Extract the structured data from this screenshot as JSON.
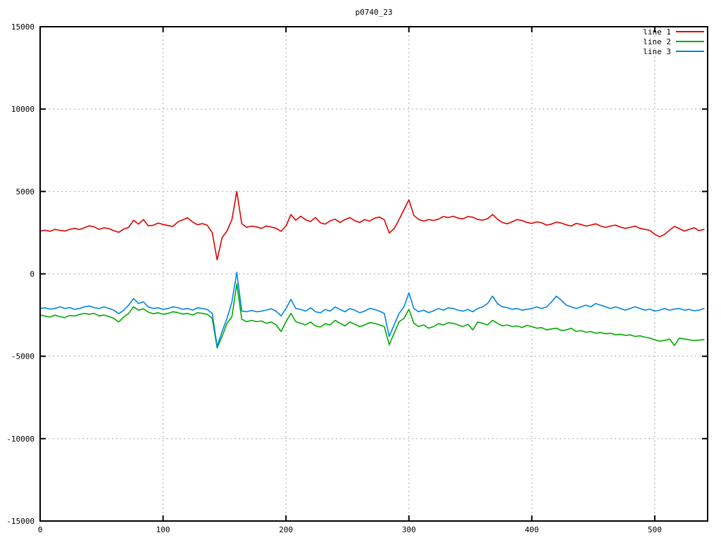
{
  "page": {
    "background": "#ffffff"
  },
  "chart_data": {
    "type": "line",
    "title": "p0740_23",
    "xlabel": "",
    "ylabel": "",
    "xlim": [
      0,
      543
    ],
    "ylim": [
      -15000,
      15000
    ],
    "x_ticks": [
      0,
      100,
      200,
      300,
      400,
      500
    ],
    "y_ticks": [
      -15000,
      -10000,
      -5000,
      0,
      5000,
      10000,
      15000
    ],
    "grid": true,
    "legend_position": "top-right-inside",
    "grid_color": "#a8a8a8",
    "border_color": "#000000",
    "x": [
      0,
      4,
      8,
      12,
      16,
      20,
      24,
      28,
      32,
      36,
      40,
      44,
      48,
      52,
      56,
      60,
      64,
      68,
      72,
      76,
      80,
      84,
      88,
      92,
      96,
      100,
      104,
      108,
      112,
      116,
      120,
      124,
      128,
      132,
      136,
      140,
      144,
      148,
      152,
      156,
      160,
      164,
      168,
      172,
      176,
      180,
      184,
      188,
      192,
      196,
      200,
      204,
      208,
      212,
      216,
      220,
      224,
      228,
      232,
      236,
      240,
      244,
      248,
      252,
      256,
      260,
      264,
      268,
      272,
      276,
      280,
      284,
      288,
      292,
      296,
      300,
      304,
      308,
      312,
      316,
      320,
      324,
      328,
      332,
      336,
      340,
      344,
      348,
      352,
      356,
      360,
      364,
      368,
      372,
      376,
      380,
      384,
      388,
      392,
      396,
      400,
      404,
      408,
      412,
      416,
      420,
      424,
      428,
      432,
      436,
      440,
      444,
      448,
      452,
      456,
      460,
      464,
      468,
      472,
      476,
      480,
      484,
      488,
      492,
      496,
      500,
      504,
      508,
      512,
      516,
      520,
      524,
      528,
      532,
      536,
      540
    ],
    "series": [
      {
        "name": "line 1",
        "color": "#dd0000",
        "values": [
          2600,
          2650,
          2580,
          2700,
          2640,
          2600,
          2700,
          2760,
          2690,
          2800,
          2920,
          2850,
          2700,
          2800,
          2740,
          2620,
          2520,
          2720,
          2820,
          3250,
          3020,
          3300,
          2920,
          2950,
          3080,
          3000,
          2930,
          2880,
          3150,
          3280,
          3400,
          3150,
          2980,
          3050,
          2950,
          2500,
          850,
          2200,
          2600,
          3300,
          5000,
          3050,
          2820,
          2900,
          2850,
          2760,
          2900,
          2840,
          2760,
          2580,
          2900,
          3600,
          3250,
          3500,
          3280,
          3180,
          3420,
          3100,
          3020,
          3220,
          3320,
          3120,
          3300,
          3420,
          3220,
          3120,
          3300,
          3200,
          3380,
          3450,
          3280,
          2480,
          2750,
          3300,
          3900,
          4500,
          3550,
          3300,
          3200,
          3300,
          3240,
          3320,
          3480,
          3420,
          3500,
          3380,
          3340,
          3480,
          3440,
          3300,
          3260,
          3350,
          3600,
          3320,
          3120,
          3040,
          3160,
          3300,
          3240,
          3120,
          3060,
          3160,
          3100,
          2960,
          3020,
          3140,
          3080,
          2980,
          2900,
          3060,
          3000,
          2900,
          2960,
          3040,
          2900,
          2820,
          2900,
          2960,
          2840,
          2760,
          2820,
          2900,
          2760,
          2700,
          2640,
          2400,
          2250,
          2400,
          2650,
          2880,
          2750,
          2600,
          2700,
          2800,
          2620,
          2700
        ]
      },
      {
        "name": "line 2",
        "color": "#00aa00",
        "values": [
          -2500,
          -2560,
          -2620,
          -2500,
          -2600,
          -2660,
          -2520,
          -2560,
          -2460,
          -2400,
          -2450,
          -2400,
          -2550,
          -2500,
          -2600,
          -2700,
          -2920,
          -2620,
          -2400,
          -2000,
          -2200,
          -2120,
          -2320,
          -2420,
          -2360,
          -2450,
          -2400,
          -2300,
          -2350,
          -2440,
          -2400,
          -2500,
          -2360,
          -2400,
          -2460,
          -2700,
          -4500,
          -3800,
          -3000,
          -2600,
          -600,
          -2750,
          -2900,
          -2820,
          -2900,
          -2860,
          -3000,
          -2920,
          -3100,
          -3500,
          -2900,
          -2400,
          -2900,
          -3000,
          -3100,
          -2920,
          -3160,
          -3220,
          -3020,
          -3100,
          -2820,
          -3000,
          -3160,
          -2920,
          -3060,
          -3200,
          -3100,
          -2960,
          -3000,
          -3100,
          -3200,
          -4300,
          -3600,
          -2900,
          -2700,
          -2150,
          -3000,
          -3200,
          -3100,
          -3300,
          -3200,
          -3020,
          -3100,
          -2960,
          -3000,
          -3100,
          -3200,
          -3060,
          -3400,
          -2920,
          -3000,
          -3100,
          -2820,
          -3000,
          -3160,
          -3100,
          -3200,
          -3160,
          -3260,
          -3120,
          -3200,
          -3300,
          -3260,
          -3400,
          -3340,
          -3300,
          -3440,
          -3400,
          -3300,
          -3500,
          -3440,
          -3540,
          -3500,
          -3600,
          -3560,
          -3640,
          -3600,
          -3700,
          -3660,
          -3740,
          -3700,
          -3800,
          -3760,
          -3840,
          -3900,
          -4000,
          -4080,
          -4040,
          -3950,
          -4350,
          -3900,
          -3950,
          -4000,
          -4050,
          -4020,
          -3980
        ]
      },
      {
        "name": "line 3",
        "color": "#0084e0",
        "values": [
          -2100,
          -2060,
          -2140,
          -2100,
          -2000,
          -2100,
          -2050,
          -2150,
          -2100,
          -2000,
          -1950,
          -2050,
          -2100,
          -2000,
          -2100,
          -2200,
          -2420,
          -2200,
          -1900,
          -1500,
          -1800,
          -1700,
          -2000,
          -2100,
          -2060,
          -2150,
          -2100,
          -2000,
          -2050,
          -2150,
          -2100,
          -2200,
          -2060,
          -2100,
          -2160,
          -2400,
          -4400,
          -3500,
          -2700,
          -1700,
          100,
          -2250,
          -2300,
          -2220,
          -2300,
          -2260,
          -2200,
          -2120,
          -2260,
          -2550,
          -2100,
          -1550,
          -2100,
          -2160,
          -2260,
          -2060,
          -2300,
          -2360,
          -2160,
          -2260,
          -2000,
          -2160,
          -2300,
          -2100,
          -2200,
          -2360,
          -2260,
          -2100,
          -2160,
          -2260,
          -2400,
          -3800,
          -3100,
          -2400,
          -2000,
          -1150,
          -2100,
          -2300,
          -2200,
          -2350,
          -2250,
          -2100,
          -2200,
          -2060,
          -2100,
          -2200,
          -2260,
          -2160,
          -2300,
          -2100,
          -2000,
          -1800,
          -1350,
          -1800,
          -2000,
          -2050,
          -2150,
          -2100,
          -2200,
          -2150,
          -2100,
          -2000,
          -2100,
          -2000,
          -1700,
          -1350,
          -1600,
          -1900,
          -2000,
          -2100,
          -2000,
          -1900,
          -2000,
          -1800,
          -1900,
          -2000,
          -2100,
          -2000,
          -2100,
          -2200,
          -2100,
          -2000,
          -2100,
          -2200,
          -2140,
          -2260,
          -2200,
          -2100,
          -2200,
          -2140,
          -2100,
          -2200,
          -2160,
          -2240,
          -2200,
          -2100
        ]
      }
    ]
  }
}
